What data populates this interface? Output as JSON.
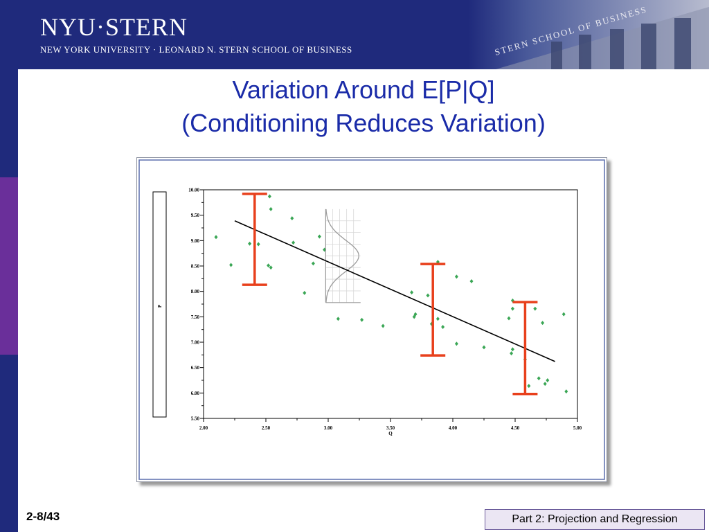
{
  "header": {
    "logo_text": "NYU·STERN",
    "subtitle": "NEW YORK UNIVERSITY · LEONARD N. STERN SCHOOL OF BUSINESS",
    "building_text": "STERN SCHOOL OF BUSINESS"
  },
  "slide": {
    "title_line1": "Variation Around E[P|Q]",
    "title_line2": "(Conditioning Reduces Variation)"
  },
  "footer": {
    "slide_number": "2-8/43",
    "section": "Part 2: Projection and Regression"
  },
  "colors": {
    "header_bg": "#1f2a7c",
    "title": "#1a2ba8",
    "points": "#3aa655",
    "error_bars": "#e8401c",
    "regression_line": "#000000",
    "left_bar_segments": [
      "#1f2a7c",
      "#6a2f9a",
      "#1f2a7c"
    ]
  },
  "chart_data": {
    "type": "scatter",
    "xlabel": "Q",
    "ylabel": "P",
    "xlim": [
      2.0,
      5.0
    ],
    "ylim": [
      5.5,
      10.0
    ],
    "x_ticks": [
      "2.00",
      "2.50",
      "3.00",
      "3.50",
      "4.00",
      "4.50",
      "5.00"
    ],
    "y_ticks": [
      "10.00",
      "9.50",
      "9.00",
      "8.50",
      "8.00",
      "7.50",
      "7.00",
      "6.50",
      "6.00",
      "5.50"
    ],
    "points": [
      {
        "x": 2.1,
        "y": 9.07
      },
      {
        "x": 2.22,
        "y": 8.52
      },
      {
        "x": 2.37,
        "y": 8.94
      },
      {
        "x": 2.44,
        "y": 8.93
      },
      {
        "x": 2.52,
        "y": 8.51
      },
      {
        "x": 2.53,
        "y": 9.87
      },
      {
        "x": 2.54,
        "y": 9.62
      },
      {
        "x": 2.54,
        "y": 8.47
      },
      {
        "x": 2.71,
        "y": 9.44
      },
      {
        "x": 2.72,
        "y": 8.96
      },
      {
        "x": 2.81,
        "y": 7.97
      },
      {
        "x": 2.88,
        "y": 8.55
      },
      {
        "x": 2.93,
        "y": 9.08
      },
      {
        "x": 2.97,
        "y": 8.82
      },
      {
        "x": 3.08,
        "y": 7.46
      },
      {
        "x": 3.27,
        "y": 7.44
      },
      {
        "x": 3.44,
        "y": 7.32
      },
      {
        "x": 3.67,
        "y": 7.98
      },
      {
        "x": 3.69,
        "y": 7.5
      },
      {
        "x": 3.7,
        "y": 7.55
      },
      {
        "x": 3.8,
        "y": 7.92
      },
      {
        "x": 3.83,
        "y": 7.36
      },
      {
        "x": 3.88,
        "y": 8.58
      },
      {
        "x": 3.88,
        "y": 7.46
      },
      {
        "x": 3.92,
        "y": 7.3
      },
      {
        "x": 4.03,
        "y": 8.29
      },
      {
        "x": 4.03,
        "y": 6.97
      },
      {
        "x": 4.15,
        "y": 8.2
      },
      {
        "x": 4.25,
        "y": 6.9
      },
      {
        "x": 4.45,
        "y": 7.47
      },
      {
        "x": 4.47,
        "y": 6.78
      },
      {
        "x": 4.48,
        "y": 6.86
      },
      {
        "x": 4.48,
        "y": 7.66
      },
      {
        "x": 4.48,
        "y": 7.82
      },
      {
        "x": 4.58,
        "y": 6.66
      },
      {
        "x": 4.61,
        "y": 6.14
      },
      {
        "x": 4.66,
        "y": 7.66
      },
      {
        "x": 4.69,
        "y": 6.29
      },
      {
        "x": 4.72,
        "y": 7.38
      },
      {
        "x": 4.74,
        "y": 6.18
      },
      {
        "x": 4.76,
        "y": 6.25
      },
      {
        "x": 4.89,
        "y": 7.55
      },
      {
        "x": 4.91,
        "y": 6.03
      }
    ],
    "regression_line": {
      "x1": 2.25,
      "y1": 9.39,
      "x2": 4.82,
      "y2": 6.62
    },
    "error_bars": [
      {
        "x": 2.41,
        "y_low": 8.13,
        "y_high": 9.92
      },
      {
        "x": 3.84,
        "y_low": 6.74,
        "y_high": 8.54
      },
      {
        "x": 4.58,
        "y_low": 5.98,
        "y_high": 7.79
      }
    ],
    "density_inset": {
      "x0": 2.98,
      "x1": 3.26,
      "y_top": 9.62,
      "y_bottom": 7.78,
      "peak_y": 8.7
    }
  }
}
